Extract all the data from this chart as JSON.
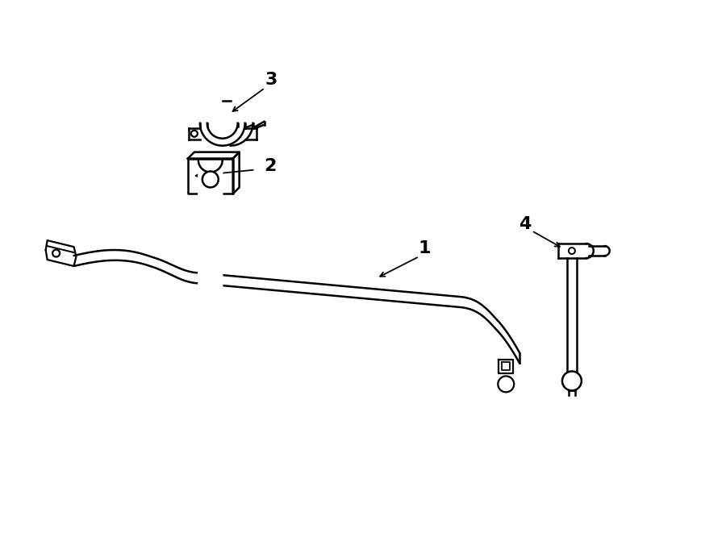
{
  "bg_color": "#ffffff",
  "line_color": "#000000",
  "fig_width": 9.0,
  "fig_height": 6.61,
  "dpi": 100,
  "lw_bar": 1.8,
  "lw_part": 1.5,
  "label_fontsize": 16
}
